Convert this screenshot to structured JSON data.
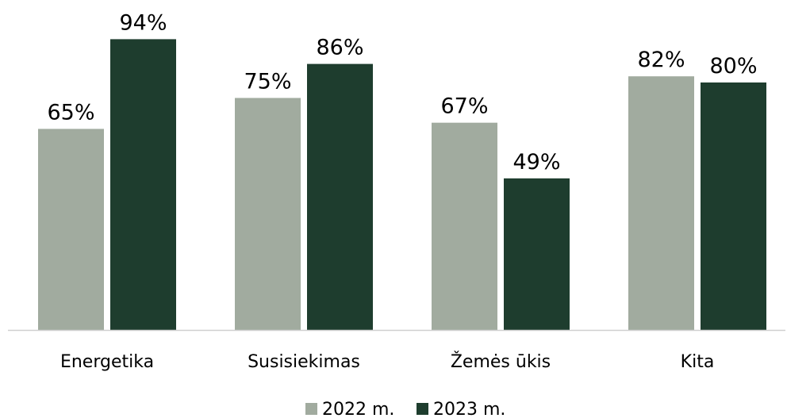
{
  "chart_data": {
    "type": "bar",
    "categories": [
      "Energetika",
      "Susisiekimas",
      "Žemės ūkis",
      "Kita"
    ],
    "series": [
      {
        "name": "2022 m.",
        "color": "#a1ab9f",
        "values": [
          65,
          75,
          67,
          82
        ]
      },
      {
        "name": "2023 m.",
        "color": "#1e3d2e",
        "values": [
          94,
          86,
          49,
          80
        ]
      }
    ],
    "value_suffix": "%",
    "ylim": [
      0,
      100
    ],
    "grid": false,
    "legend_position": "bottom-center",
    "axis_line_color": "#cfcfcf"
  }
}
